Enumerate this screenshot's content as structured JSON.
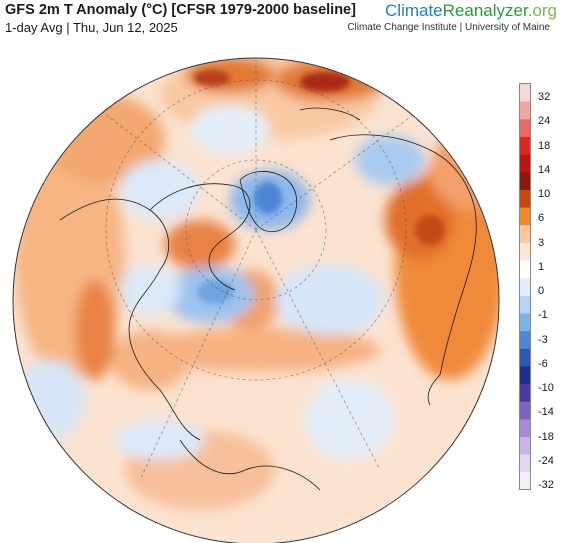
{
  "header": {
    "title": "GFS 2m T Anomaly (°C) [CFSR 1979-2000 baseline]",
    "subtitle": "1-day Avg | Thu, Jun 12, 2025"
  },
  "brand": {
    "part1": "Climate",
    "part2": "Reanalyzer",
    "part3": ".org",
    "tagline": "Climate Change Institute | University of Maine"
  },
  "legend": {
    "labels": [
      "32",
      "24",
      "18",
      "14",
      "10",
      "6",
      "3",
      "1",
      "0",
      "-1",
      "-3",
      "-6",
      "-10",
      "-14",
      "-18",
      "-24",
      "-32"
    ],
    "colors": [
      "#f6d8d4",
      "#f0a59f",
      "#e86a63",
      "#d92920",
      "#b8170f",
      "#8c1a0a",
      "#c24a0e",
      "#f08a2a",
      "#fac89a",
      "#fde8d4",
      "#ffffff",
      "#e2eefb",
      "#b6d4f2",
      "#7fb2e8",
      "#4c86d6",
      "#2f57b5",
      "#1f2e8c",
      "#4b3aa0",
      "#7d62c0",
      "#a98ad3",
      "#cbb3e3",
      "#e6d7f1",
      "#f4edf8"
    ]
  }
}
